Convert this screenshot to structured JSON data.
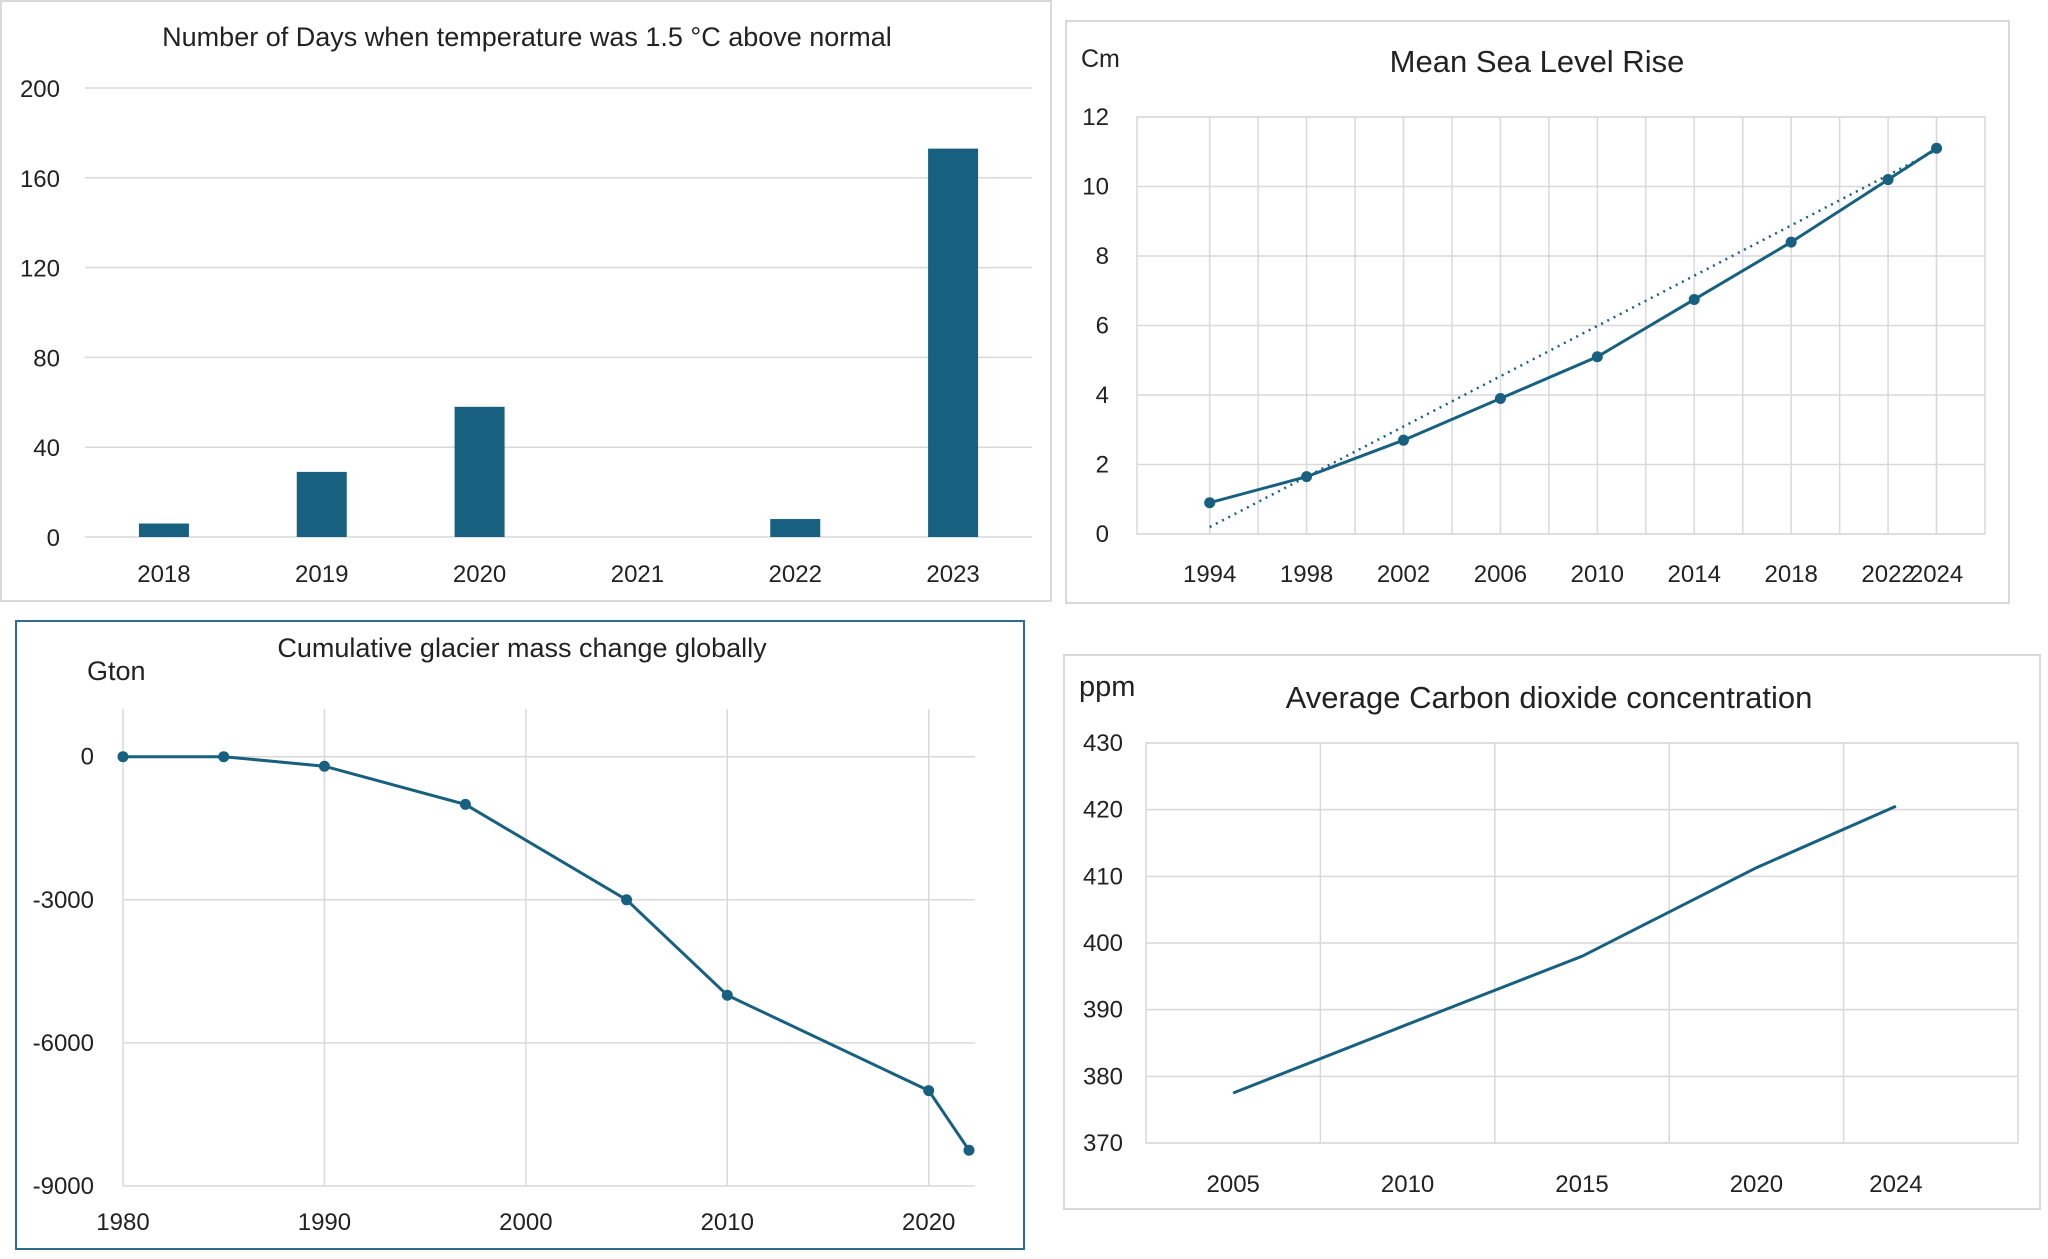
{
  "accent": "#17607f",
  "chart_data": [
    {
      "type": "bar",
      "title": "Number of Days when temperature was 1.5 °C above normal",
      "xlabel": "",
      "ylabel": "",
      "categories": [
        "2018",
        "2019",
        "2020",
        "2021",
        "2022",
        "2023"
      ],
      "values": [
        6,
        29,
        58,
        0,
        8,
        173
      ],
      "ylim": [
        0,
        200
      ],
      "yticks": [
        0,
        40,
        80,
        120,
        160,
        200
      ],
      "grid": true,
      "color": "#17607f"
    },
    {
      "type": "line",
      "title": "Mean Sea Level Rise",
      "ylabel": "Cm",
      "xlabel": "",
      "x": [
        1994,
        1998,
        2002,
        2006,
        2010,
        2014,
        2018,
        2022,
        2024
      ],
      "y": [
        0.9,
        1.65,
        2.7,
        3.9,
        5.1,
        6.75,
        8.4,
        10.2,
        11.1
      ],
      "trendline": {
        "style": "dotted",
        "x": [
          1994,
          2024
        ],
        "y": [
          0.2,
          11.05
        ]
      },
      "xlim": [
        1991,
        2026
      ],
      "ylim": [
        0,
        12
      ],
      "xticks": [
        1994,
        1998,
        2002,
        2006,
        2010,
        2014,
        2018,
        2022,
        2024
      ],
      "yticks": [
        0,
        2,
        4,
        6,
        8,
        10,
        12
      ],
      "grid": true,
      "color": "#17607f"
    },
    {
      "type": "line",
      "title": "Cumulative glacier mass change globally",
      "ylabel": "Gton",
      "xlabel": "",
      "x": [
        1980,
        1985,
        1990,
        1997,
        2005,
        2010,
        2020,
        2022
      ],
      "y": [
        0,
        0,
        -200,
        -1000,
        -3000,
        -5000,
        -7000,
        -8250
      ],
      "xlim": [
        1980,
        2022
      ],
      "ylim": [
        -9000,
        1000
      ],
      "xticks": [
        1980,
        1990,
        2000,
        2010,
        2020
      ],
      "yticks": [
        0,
        -3000,
        -6000,
        -9000
      ],
      "grid": true,
      "color": "#17607f"
    },
    {
      "type": "line",
      "title": "Average Carbon  dioxide concentration",
      "ylabel": "ppm",
      "xlabel": "",
      "x": [
        2005,
        2010,
        2015,
        2020,
        2024
      ],
      "y": [
        377.5,
        387.8,
        398,
        411.3,
        420.5
      ],
      "xlim": [
        2002.5,
        2027.5
      ],
      "ylim": [
        370,
        430
      ],
      "xticks": [
        2005,
        2010,
        2015,
        2020,
        2024
      ],
      "yticks": [
        370,
        380,
        390,
        400,
        410,
        420,
        430
      ],
      "grid": true,
      "color": "#17607f"
    }
  ]
}
